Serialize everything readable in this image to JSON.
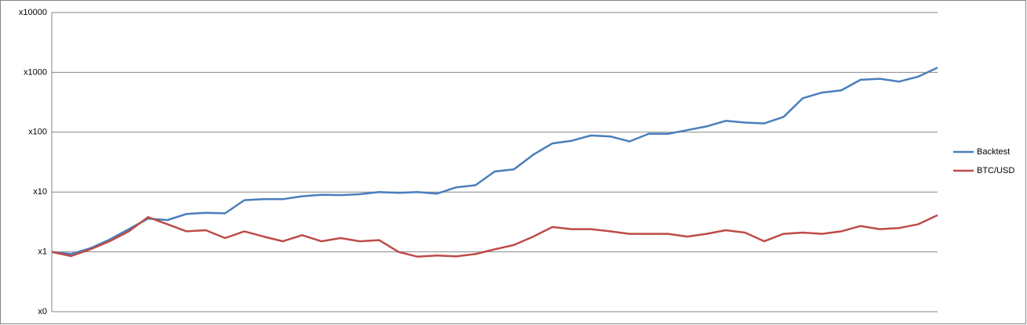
{
  "chart_data": {
    "type": "line",
    "log_scale": true,
    "grid": true,
    "legend": "right",
    "ylim": [
      0.1,
      10000
    ],
    "yticks": [
      {
        "value": 0.1,
        "label": "x0"
      },
      {
        "value": 1,
        "label": "x1"
      },
      {
        "value": 10,
        "label": "x10"
      },
      {
        "value": 100,
        "label": "x100"
      },
      {
        "value": 1000,
        "label": "x1000"
      },
      {
        "value": 10000,
        "label": "x10000"
      }
    ],
    "series": [
      {
        "name": "Backtest",
        "color": "#4a7ebb",
        "values": [
          1,
          0.92,
          1.15,
          1.6,
          2.4,
          3.6,
          3.4,
          4.3,
          4.5,
          4.4,
          7.3,
          7.6,
          7.6,
          8.5,
          9,
          8.9,
          9.2,
          10,
          9.7,
          10,
          9.4,
          12,
          13,
          22,
          24,
          42,
          65,
          72,
          88,
          85,
          70,
          94,
          94,
          108,
          125,
          155,
          145,
          140,
          180,
          370,
          460,
          500,
          750,
          780,
          700,
          850,
          1200
        ]
      },
      {
        "name": "BTC/USD",
        "color": "#be4b48",
        "values": [
          1,
          0.85,
          1.1,
          1.5,
          2.2,
          3.8,
          2.9,
          2.2,
          2.3,
          1.7,
          2.2,
          1.8,
          1.5,
          1.9,
          1.5,
          1.7,
          1.5,
          1.57,
          1.0,
          0.83,
          0.87,
          0.84,
          0.92,
          1.1,
          1.3,
          1.8,
          2.6,
          2.4,
          2.4,
          2.2,
          2.0,
          2.0,
          2.0,
          1.8,
          2.0,
          2.3,
          2.1,
          1.5,
          2.0,
          2.1,
          2.0,
          2.2,
          2.7,
          2.4,
          2.5,
          2.9,
          4.1
        ]
      }
    ]
  }
}
